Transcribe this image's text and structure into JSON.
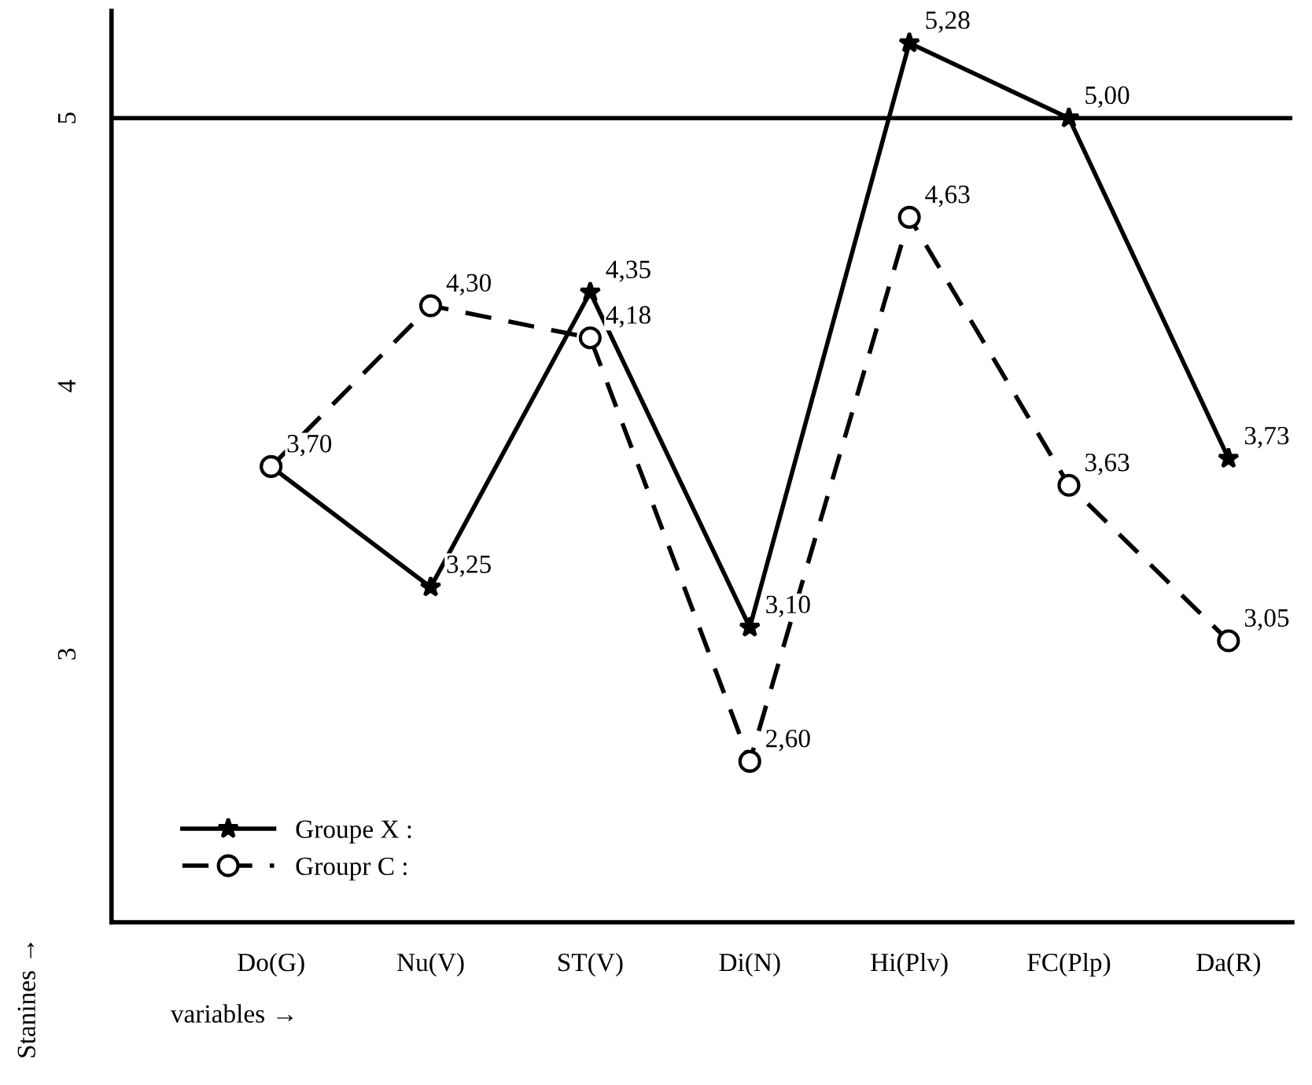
{
  "chart_data": {
    "type": "line",
    "xlabel": "variables →",
    "ylabel": "Stanines →",
    "categories": [
      "Do(G)",
      "Nu(V)",
      "ST(V)",
      "Di(N)",
      "Hi(Plv)",
      "FC(Plp)",
      "Da(R)"
    ],
    "ylim": [
      2.0,
      5.4
    ],
    "yticks": [
      3,
      4,
      5
    ],
    "grid": false,
    "legend": "bottom left",
    "ref_lines": [
      {
        "axis": "y",
        "value": 5,
        "color": "#000000",
        "line_style": "solid"
      }
    ],
    "series": [
      {
        "name": "Groupe X :",
        "color": "#000000",
        "marker": "star",
        "line_style": "solid",
        "values": [
          3.7,
          3.25,
          4.35,
          3.1,
          5.28,
          5.0,
          3.73
        ],
        "value_labels": [
          "3,70",
          "3,25",
          "4,35",
          "3,10",
          "5,28",
          "5,00",
          "3,73"
        ]
      },
      {
        "name": "Groupr C :",
        "color": "#000000",
        "marker": "circle",
        "line_style": "dashed",
        "values": [
          3.7,
          4.3,
          4.18,
          2.6,
          4.63,
          3.63,
          3.05
        ],
        "value_labels": [
          null,
          "4,30",
          "4,18",
          "2,60",
          "4,63",
          "3,63",
          "3,05"
        ]
      }
    ]
  }
}
